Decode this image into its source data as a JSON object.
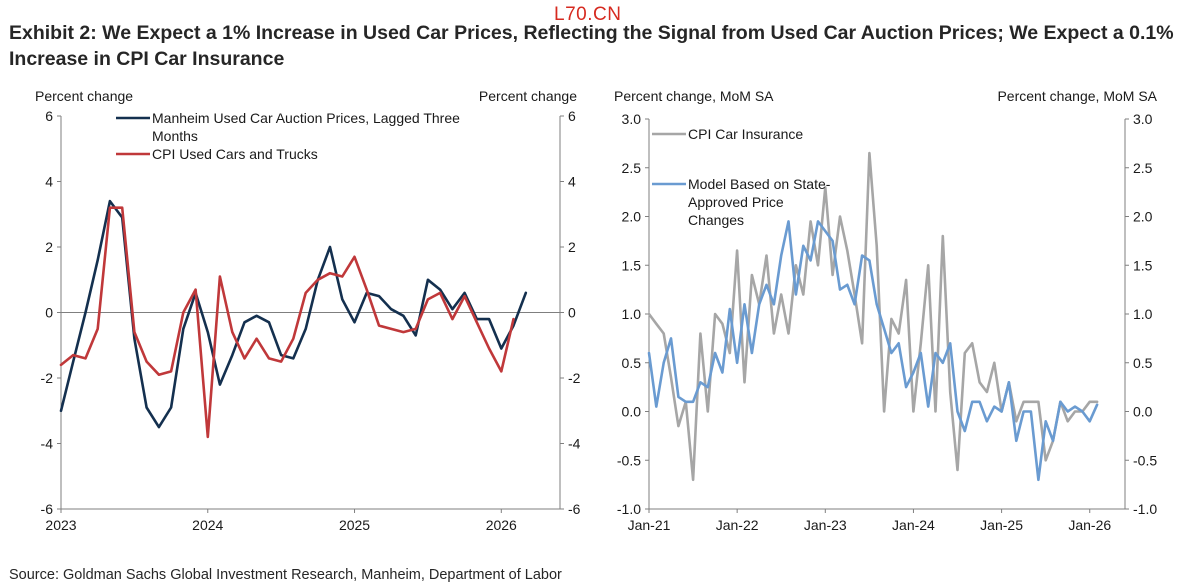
{
  "watermark": "L70.CN",
  "title": "Exhibit 2: We Expect a 1% Increase in Used Car Prices, Reflecting the Signal from Used Car Auction Prices; We Expect a 0.1% Increase in CPI Car Insurance",
  "source": "Source: Goldman Sachs Global Investment Research, Manheim, Department of Labor",
  "chart_data": [
    {
      "type": "line",
      "left_axis_label": "Percent change",
      "right_axis_label": "Percent change",
      "ylim": [
        -6,
        6
      ],
      "yticks": [
        6,
        4,
        2,
        0,
        -2,
        -4,
        -6
      ],
      "xlim": [
        2023.0,
        2026.4
      ],
      "xticks": [
        {
          "v": 2023,
          "label": "2023"
        },
        {
          "v": 2024,
          "label": "2024"
        },
        {
          "v": 2025,
          "label": "2025"
        },
        {
          "v": 2026,
          "label": "2026"
        }
      ],
      "legend_position": "top",
      "series": [
        {
          "name": "Manheim Used Car Auction Prices, Lagged Three Months",
          "color": "#14304f",
          "x": [
            2023.0,
            2023.083,
            2023.167,
            2023.25,
            2023.333,
            2023.417,
            2023.5,
            2023.583,
            2023.667,
            2023.75,
            2023.833,
            2023.917,
            2024.0,
            2024.083,
            2024.167,
            2024.25,
            2024.333,
            2024.417,
            2024.5,
            2024.583,
            2024.667,
            2024.75,
            2024.833,
            2024.917,
            2025.0,
            2025.083,
            2025.167,
            2025.25,
            2025.333,
            2025.417,
            2025.5,
            2025.583,
            2025.667,
            2025.75,
            2025.833,
            2025.917,
            2026.0,
            2026.083,
            2026.167
          ],
          "values": [
            -3.0,
            -1.5,
            0.0,
            1.6,
            3.4,
            2.9,
            -0.8,
            -2.9,
            -3.5,
            -2.9,
            -0.5,
            0.6,
            -0.6,
            -2.2,
            -1.3,
            -0.3,
            -0.1,
            -0.3,
            -1.3,
            -1.4,
            -0.5,
            1.0,
            2.0,
            0.4,
            -0.3,
            0.6,
            0.5,
            0.1,
            -0.1,
            -0.7,
            1.0,
            0.7,
            0.1,
            0.6,
            -0.2,
            -0.2,
            -1.1,
            -0.4,
            0.6
          ]
        },
        {
          "name": "CPI Used Cars and Trucks",
          "color": "#c0383a",
          "x": [
            2023.0,
            2023.083,
            2023.167,
            2023.25,
            2023.333,
            2023.417,
            2023.5,
            2023.583,
            2023.667,
            2023.75,
            2023.833,
            2023.917,
            2024.0,
            2024.083,
            2024.167,
            2024.25,
            2024.333,
            2024.417,
            2024.5,
            2024.583,
            2024.667,
            2024.75,
            2024.833,
            2024.917,
            2025.0,
            2025.083,
            2025.167,
            2025.25,
            2025.333,
            2025.417,
            2025.5,
            2025.583,
            2025.667,
            2025.75,
            2025.833,
            2025.917,
            2026.0,
            2026.083
          ],
          "values": [
            -1.6,
            -1.3,
            -1.4,
            -0.5,
            3.2,
            3.2,
            -0.6,
            -1.5,
            -1.9,
            -1.8,
            0.0,
            0.7,
            -3.8,
            1.1,
            -0.6,
            -1.4,
            -0.8,
            -1.4,
            -1.5,
            -0.8,
            0.6,
            1.0,
            1.2,
            1.1,
            1.7,
            0.7,
            -0.4,
            -0.5,
            -0.6,
            -0.5,
            0.4,
            0.6,
            -0.2,
            0.5,
            -0.3,
            -1.1,
            -1.8,
            -0.2
          ]
        }
      ]
    },
    {
      "type": "line",
      "left_axis_label": "Percent change, MoM SA",
      "right_axis_label": "Percent change, MoM SA",
      "ylim": [
        -1.0,
        3.0
      ],
      "yticks": [
        3.0,
        2.5,
        2.0,
        1.5,
        1.0,
        0.5,
        0.0,
        -0.5,
        -1.0
      ],
      "xlim": [
        2021.0,
        2026.4
      ],
      "xticks": [
        {
          "v": 2021,
          "label": "Jan-21"
        },
        {
          "v": 2022,
          "label": "Jan-22"
        },
        {
          "v": 2023,
          "label": "Jan-23"
        },
        {
          "v": 2024,
          "label": "Jan-24"
        },
        {
          "v": 2025,
          "label": "Jan-25"
        },
        {
          "v": 2026,
          "label": "Jan-26"
        }
      ],
      "legend_position": "top-left",
      "series": [
        {
          "name": "CPI Car Insurance",
          "color": "#a6a6a6",
          "x": [
            2021.0,
            2021.083,
            2021.167,
            2021.25,
            2021.333,
            2021.417,
            2021.5,
            2021.583,
            2021.667,
            2021.75,
            2021.833,
            2021.917,
            2022.0,
            2022.083,
            2022.167,
            2022.25,
            2022.333,
            2022.417,
            2022.5,
            2022.583,
            2022.667,
            2022.75,
            2022.833,
            2022.917,
            2023.0,
            2023.083,
            2023.167,
            2023.25,
            2023.333,
            2023.417,
            2023.5,
            2023.583,
            2023.667,
            2023.75,
            2023.833,
            2023.917,
            2024.0,
            2024.083,
            2024.167,
            2024.25,
            2024.333,
            2024.417,
            2024.5,
            2024.583,
            2024.667,
            2024.75,
            2024.833,
            2024.917,
            2025.0,
            2025.083,
            2025.167,
            2025.25,
            2025.333,
            2025.417,
            2025.5,
            2025.583,
            2025.667,
            2025.75,
            2025.833,
            2025.917,
            2026.0,
            2026.083
          ],
          "values": [
            1.0,
            0.9,
            0.8,
            0.35,
            -0.15,
            0.1,
            -0.7,
            0.8,
            0.0,
            1.0,
            0.9,
            0.6,
            1.65,
            0.3,
            1.4,
            1.1,
            1.6,
            0.8,
            1.2,
            0.8,
            1.5,
            1.2,
            1.95,
            1.5,
            2.3,
            1.4,
            2.0,
            1.65,
            1.2,
            0.7,
            2.65,
            1.7,
            0.0,
            0.95,
            0.8,
            1.35,
            0.0,
            0.7,
            1.5,
            0.0,
            1.8,
            0.2,
            -0.6,
            0.6,
            0.7,
            0.3,
            0.2,
            0.5,
            0.0,
            0.3,
            -0.1,
            0.1,
            0.1,
            0.1,
            -0.5,
            -0.3,
            0.1,
            -0.1,
            0.0,
            0.0,
            0.1,
            0.1
          ]
        },
        {
          "name": "Model Based on State-Approved Price Changes",
          "color": "#6a9bd1",
          "x": [
            2021.0,
            2021.083,
            2021.167,
            2021.25,
            2021.333,
            2021.417,
            2021.5,
            2021.583,
            2021.667,
            2021.75,
            2021.833,
            2021.917,
            2022.0,
            2022.083,
            2022.167,
            2022.25,
            2022.333,
            2022.417,
            2022.5,
            2022.583,
            2022.667,
            2022.75,
            2022.833,
            2022.917,
            2023.0,
            2023.083,
            2023.167,
            2023.25,
            2023.333,
            2023.417,
            2023.5,
            2023.583,
            2023.667,
            2023.75,
            2023.833,
            2023.917,
            2024.0,
            2024.083,
            2024.167,
            2024.25,
            2024.333,
            2024.417,
            2024.5,
            2024.583,
            2024.667,
            2024.75,
            2024.833,
            2024.917,
            2025.0,
            2025.083,
            2025.167,
            2025.25,
            2025.333,
            2025.417,
            2025.5,
            2025.583,
            2025.667,
            2025.75,
            2025.833,
            2025.917,
            2026.0,
            2026.083
          ],
          "values": [
            0.6,
            0.05,
            0.5,
            0.75,
            0.15,
            0.1,
            0.1,
            0.3,
            0.25,
            0.6,
            0.4,
            1.05,
            0.5,
            1.1,
            0.6,
            1.1,
            1.3,
            1.1,
            1.6,
            1.95,
            1.2,
            1.7,
            1.55,
            1.95,
            1.85,
            1.75,
            1.25,
            1.3,
            1.1,
            1.6,
            1.55,
            1.1,
            0.85,
            0.6,
            0.7,
            0.25,
            0.4,
            0.6,
            0.05,
            0.6,
            0.5,
            0.7,
            0.0,
            -0.2,
            0.1,
            0.1,
            -0.1,
            0.05,
            0.0,
            0.3,
            -0.3,
            0.0,
            0.0,
            -0.7,
            -0.1,
            -0.3,
            0.1,
            0.0,
            0.05,
            0.0,
            -0.1,
            0.07
          ]
        }
      ]
    }
  ]
}
